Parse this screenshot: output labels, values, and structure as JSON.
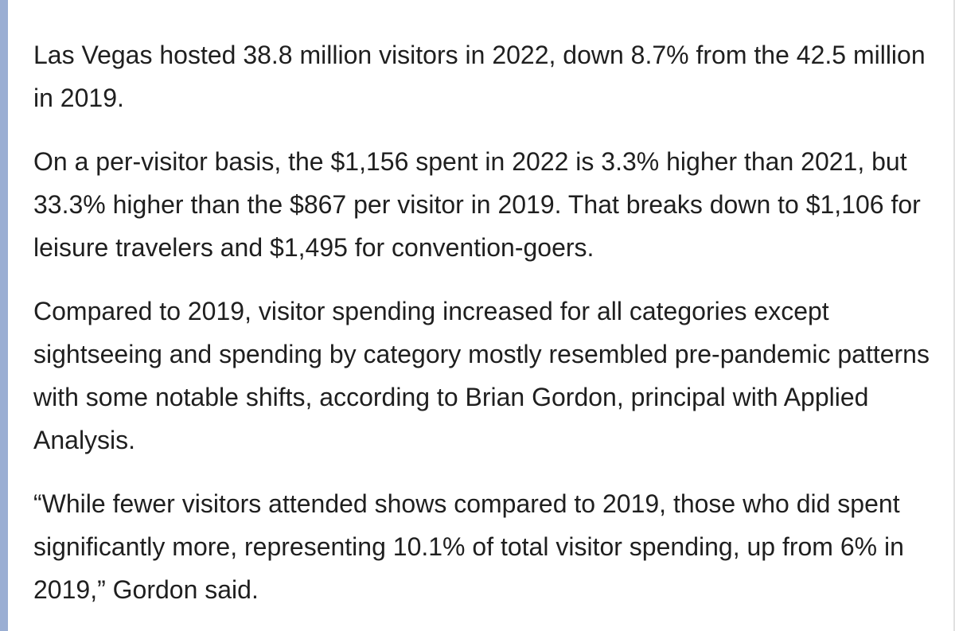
{
  "article": {
    "paragraphs": [
      "Las Vegas hosted 38.8 million visitors in 2022, down 8.7% from the 42.5 million in 2019.",
      "On a per-visitor basis, the $1,156 spent in 2022 is 3.3% higher than 2021, but 33.3% higher than the $867 per visitor in 2019. That breaks down to $1,106 for leisure travelers and $1,495 for convention-goers.",
      "Compared to 2019, visitor spending increased for all categories except sightseeing and spending by category mostly resembled pre-pandemic patterns with some notable shifts, according to Brian Gordon, principal with Applied Analysis.",
      "“While fewer visitors attended shows compared to 2019, those who did spent significantly more, representing 10.1% of total visitor spending, up from 6% in 2019,” Gordon said."
    ]
  },
  "colors": {
    "left_bar": "#9aaed3",
    "text": "#1f1f1f",
    "background": "#ffffff"
  }
}
